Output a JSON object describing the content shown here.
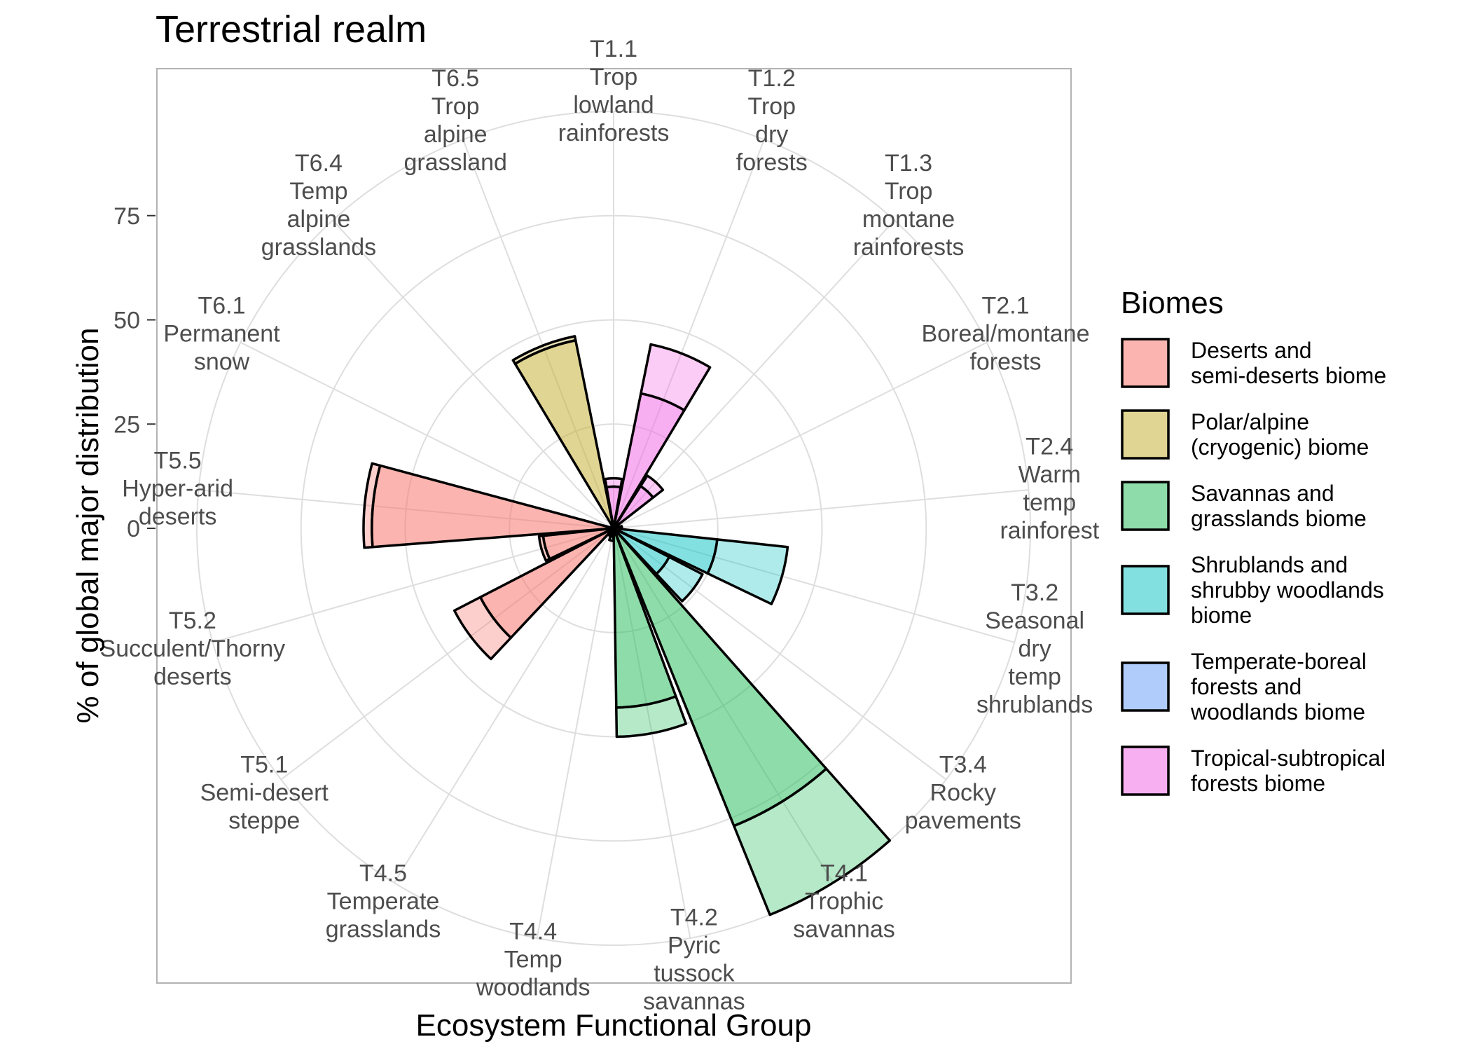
{
  "chart_data": {
    "type": "bar",
    "coord": "polar",
    "title": "Terrestrial realm",
    "xlabel": "Ecosystem Functional Group",
    "ylabel": "% of global major distribution",
    "y_ticks": [
      0,
      25,
      50,
      75
    ],
    "ylim": [
      0,
      100
    ],
    "grid": true,
    "legend_position": "right",
    "legend": {
      "title": "Biomes",
      "entries": [
        {
          "label": "Deserts and semi-deserts biome",
          "lines": [
            "Deserts and",
            "semi-deserts biome"
          ],
          "color": "#f8766d"
        },
        {
          "label": "Polar/alpine (cryogenic) biome",
          "lines": [
            "Polar/alpine",
            "(cryogenic) biome"
          ],
          "color": "#c9b33d"
        },
        {
          "label": "Savannas and grasslands biome",
          "lines": [
            "Savannas and",
            "grasslands biome"
          ],
          "color": "#2fbf62"
        },
        {
          "label": "Shrublands and shrubby woodlands biome",
          "lines": [
            "Shrublands and",
            "shrubby woodlands",
            "biome"
          ],
          "color": "#1ec7c7"
        },
        {
          "label": "Temperate-boreal forests and woodlands biome",
          "lines": [
            "Temperate-boreal",
            "forests and",
            "woodlands biome"
          ],
          "color": "#6fa3f7"
        },
        {
          "label": "Tropical-subtropical forests biome",
          "lines": [
            "Tropical-subtropical",
            "forests biome"
          ],
          "color": "#f36ee6"
        }
      ]
    },
    "categories": [
      {
        "code": "T1.1",
        "lines": [
          "T1.1",
          "Trop",
          "lowland",
          "rainforests"
        ],
        "biome": 5,
        "outer": 12,
        "inner": 10
      },
      {
        "code": "T1.2",
        "lines": [
          "T1.2",
          "Trop",
          "dry",
          "forests"
        ],
        "biome": 5,
        "outer": 45,
        "inner": 33
      },
      {
        "code": "T1.3",
        "lines": [
          "T1.3",
          "Trop",
          "montane",
          "rainforests"
        ],
        "biome": 5,
        "outer": 15,
        "inner": 12
      },
      {
        "code": "T2.1",
        "lines": [
          "T2.1",
          "Boreal/montane",
          "forests"
        ],
        "biome": 4,
        "outer": 0,
        "inner": 0
      },
      {
        "code": "T2.4",
        "lines": [
          "T2.4",
          "Warm",
          "temp",
          "rainforest"
        ],
        "biome": 4,
        "outer": 2,
        "inner": 1
      },
      {
        "code": "T3.2",
        "lines": [
          "T3.2",
          "Seasonal",
          "dry",
          "temp",
          "shrublands"
        ],
        "biome": 3,
        "outer": 42,
        "inner": 25
      },
      {
        "code": "T3.4",
        "lines": [
          "T3.4",
          "Rocky",
          "pavements"
        ],
        "biome": 3,
        "outer": 24,
        "inner": 15
      },
      {
        "code": "T4.1",
        "lines": [
          "T4.1",
          "Trophic",
          "savannas"
        ],
        "biome": 2,
        "outer": 100,
        "inner": 77
      },
      {
        "code": "T4.2",
        "lines": [
          "T4.2",
          "Pyric",
          "tussock",
          "savannas"
        ],
        "biome": 2,
        "outer": 50,
        "inner": 43
      },
      {
        "code": "T4.4",
        "lines": [
          "T4.4",
          "Temp",
          "woodlands"
        ],
        "biome": 2,
        "outer": 3,
        "inner": 2
      },
      {
        "code": "T4.5",
        "lines": [
          "T4.5",
          "Temperate",
          "grasslands"
        ],
        "biome": 2,
        "outer": 2,
        "inner": 1
      },
      {
        "code": "T5.1",
        "lines": [
          "T5.1",
          "Semi-desert",
          "steppe"
        ],
        "biome": 0,
        "outer": 43,
        "inner": 36
      },
      {
        "code": "T5.2",
        "lines": [
          "T5.2",
          "Succulent/Thorny",
          "deserts"
        ],
        "biome": 0,
        "outer": 18,
        "inner": 17
      },
      {
        "code": "T5.5",
        "lines": [
          "T5.5",
          "Hyper-arid",
          "deserts"
        ],
        "biome": 0,
        "outer": 60,
        "inner": 58
      },
      {
        "code": "T6.1",
        "lines": [
          "T6.1",
          "Permanent",
          "snow"
        ],
        "biome": 1,
        "outer": 0,
        "inner": 0
      },
      {
        "code": "T6.4",
        "lines": [
          "T6.4",
          "Temp",
          "alpine",
          "grasslands"
        ],
        "biome": 1,
        "outer": 0,
        "inner": 0
      },
      {
        "code": "T6.5",
        "lines": [
          "T6.5",
          "Trop",
          "alpine",
          "grassland"
        ],
        "biome": 1,
        "outer": 47,
        "inner": 46
      }
    ]
  }
}
